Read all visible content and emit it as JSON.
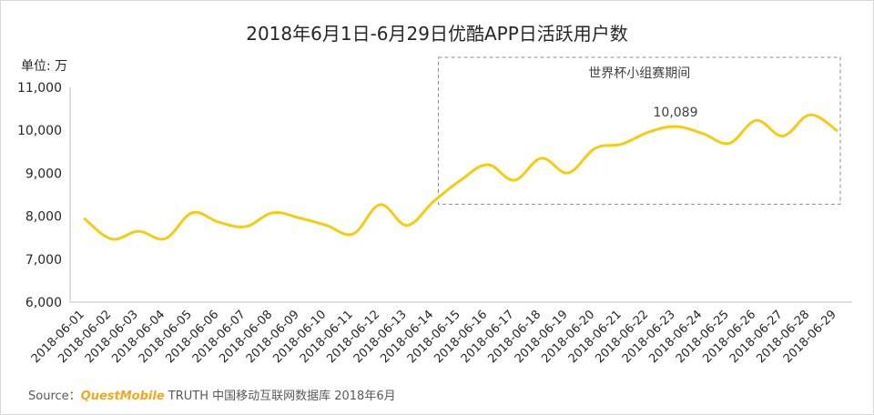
{
  "chart_data": {
    "type": "line",
    "title": "2018年6月1日-6月29日优酷APP日活跃用户数",
    "ylabel": "单位: 万",
    "xlabel": "",
    "ylim": [
      6000,
      11000
    ],
    "yticks": [
      6000,
      7000,
      8000,
      9000,
      10000,
      11000
    ],
    "ytick_labels": [
      "6,000",
      "7,000",
      "8,000",
      "9,000",
      "10,000",
      "11,000"
    ],
    "grid": false,
    "categories": [
      "2018-06-01",
      "2018-06-02",
      "2018-06-03",
      "2018-06-04",
      "2018-06-05",
      "2018-06-06",
      "2018-06-07",
      "2018-06-08",
      "2018-06-09",
      "2018-06-10",
      "2018-06-11",
      "2018-06-12",
      "2018-06-13",
      "2018-06-14",
      "2018-06-15",
      "2018-06-16",
      "2018-06-17",
      "2018-06-18",
      "2018-06-19",
      "2018-06-20",
      "2018-06-21",
      "2018-06-22",
      "2018-06-23",
      "2018-06-24",
      "2018-06-25",
      "2018-06-26",
      "2018-06-27",
      "2018-06-28",
      "2018-06-29"
    ],
    "series": [
      {
        "color": "#f5cc13",
        "values": [
          7940,
          7470,
          7650,
          7480,
          8080,
          7860,
          7760,
          8080,
          7960,
          7790,
          7590,
          8270,
          7790,
          8350,
          8840,
          9200,
          8840,
          9350,
          9010,
          9580,
          9680,
          9960,
          10089,
          9930,
          9700,
          10230,
          9870,
          10360,
          10000
        ]
      }
    ],
    "annotations": [
      {
        "text": "10,089",
        "category_index": 22,
        "value": 10089
      }
    ],
    "highlight": {
      "label": "世界杯小组赛期间",
      "from_index": 13,
      "to_index": 28,
      "value_range": [
        8280,
        11700
      ],
      "style": "dashed"
    }
  },
  "source": {
    "prefix": "Source：",
    "brand": "QuestMobile",
    "text": " TRUTH 中国移动互联网数据库 2018年6月"
  }
}
